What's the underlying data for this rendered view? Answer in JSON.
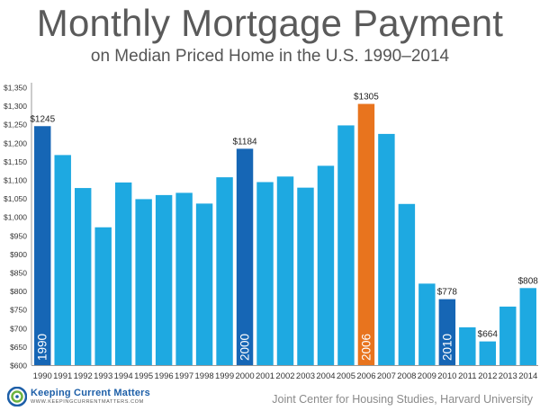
{
  "header": {
    "title": "Monthly Mortgage Payment",
    "subtitle": "on Median Priced Home in the U.S. 1990–2014"
  },
  "footer": {
    "logo_name": "Keeping Current Matters",
    "logo_url": "WWW.KEEPINGCURRENTMATTERS.COM",
    "source": "Joint Center for Housing Studies, Harvard University"
  },
  "colors": {
    "bar_default": "#1ea9e1",
    "bar_decade": "#1666b5",
    "bar_peak": "#e8741e",
    "axis_text": "#333333"
  },
  "chart_data": {
    "type": "bar",
    "title": "Monthly Mortgage Payment",
    "subtitle": "on Median Priced Home in the U.S. 1990–2014",
    "xlabel": "",
    "ylabel": "",
    "ylim": [
      600,
      1350
    ],
    "ytick_step": 50,
    "yticks": [
      "$600",
      "$650",
      "$700",
      "$750",
      "$800",
      "$850",
      "$900",
      "$950",
      "$1,000",
      "$1,050",
      "$1,100",
      "$1,150",
      "$1,200",
      "$1,250",
      "$1,300",
      "$1,350"
    ],
    "grid": false,
    "categories": [
      "1990",
      "1991",
      "1992",
      "1993",
      "1994",
      "1995",
      "1996",
      "1997",
      "1998",
      "1999",
      "2000",
      "2001",
      "2002",
      "2003",
      "2004",
      "2005",
      "2006",
      "2007",
      "2008",
      "2009",
      "2010",
      "2011",
      "2012",
      "2013",
      "2014"
    ],
    "values": [
      1245,
      1167,
      1078,
      972,
      1093,
      1048,
      1059,
      1065,
      1036,
      1107,
      1184,
      1094,
      1109,
      1079,
      1138,
      1247,
      1305,
      1224,
      1035,
      820,
      778,
      702,
      664,
      758,
      808
    ],
    "highlight": {
      "1990": "decade",
      "2000": "decade",
      "2010": "decade",
      "2006": "peak"
    },
    "data_labels": [
      {
        "category": "1990",
        "text": "$1245"
      },
      {
        "category": "2000",
        "text": "$1184"
      },
      {
        "category": "2006",
        "text": "$1305"
      },
      {
        "category": "2010",
        "text": "$778"
      },
      {
        "category": "2012",
        "text": "$664"
      },
      {
        "category": "2014",
        "text": "$808"
      }
    ],
    "in_bar_labels": [
      "1990",
      "2000",
      "2006",
      "2010"
    ]
  }
}
